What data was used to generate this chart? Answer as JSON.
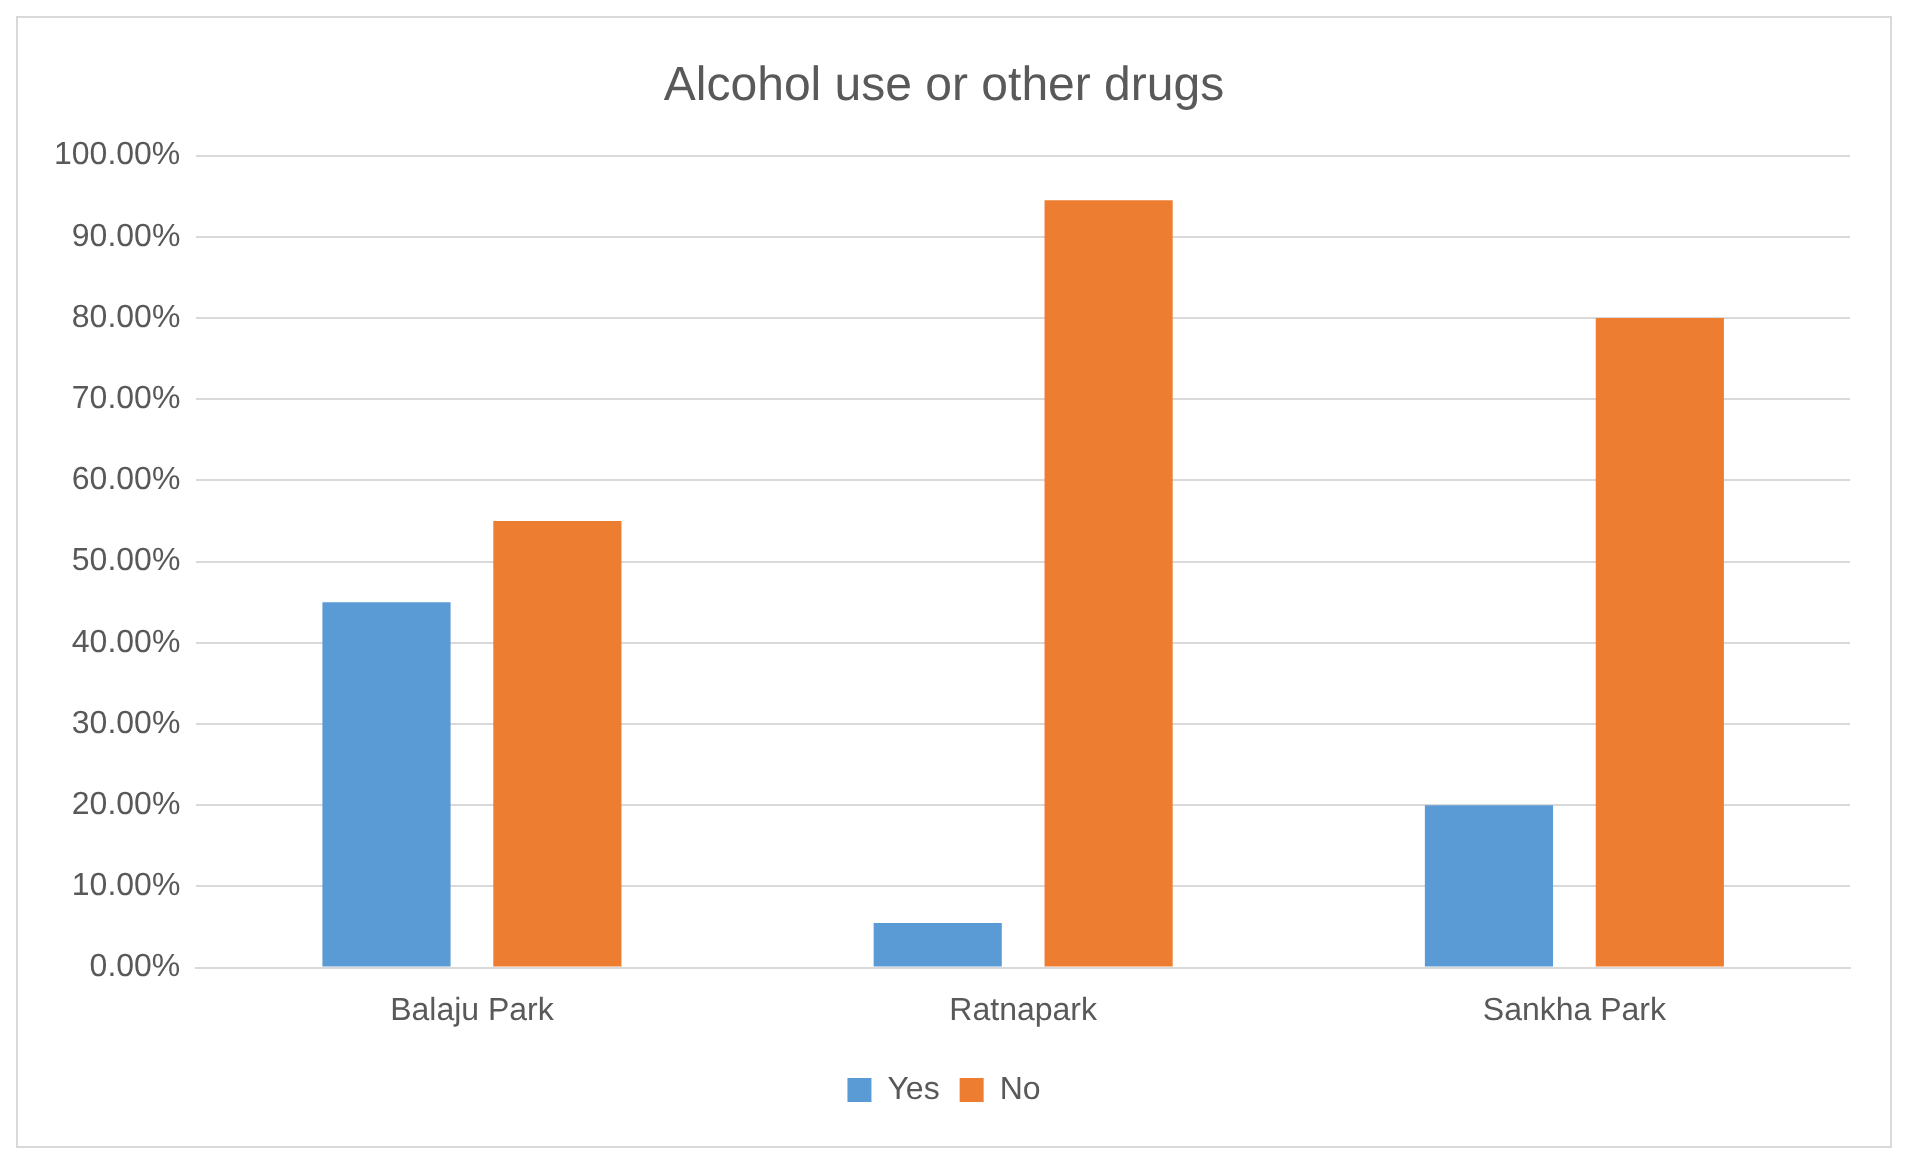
{
  "chart_data": {
    "type": "bar",
    "title": "Alcohol use or other drugs",
    "categories": [
      "Balaju Park",
      "Ratnapark",
      "Sankha Park"
    ],
    "series": [
      {
        "name": "Yes",
        "color": "#5b9bd5",
        "values": [
          45,
          5.5,
          20
        ]
      },
      {
        "name": "No",
        "color": "#ed7d31",
        "values": [
          55,
          94.5,
          80
        ]
      }
    ],
    "ylim": [
      0,
      100
    ],
    "yticks": [
      {
        "value": 0,
        "label": "0.00%"
      },
      {
        "value": 10,
        "label": "10.00%"
      },
      {
        "value": 20,
        "label": "20.00%"
      },
      {
        "value": 30,
        "label": "30.00%"
      },
      {
        "value": 40,
        "label": "40.00%"
      },
      {
        "value": 50,
        "label": "50.00%"
      },
      {
        "value": 60,
        "label": "60.00%"
      },
      {
        "value": 70,
        "label": "70.00%"
      },
      {
        "value": 80,
        "label": "80.00%"
      },
      {
        "value": 90,
        "label": "90.00%"
      },
      {
        "value": 100,
        "label": "100.00%"
      }
    ],
    "grid": "y",
    "legend": "bottom"
  }
}
